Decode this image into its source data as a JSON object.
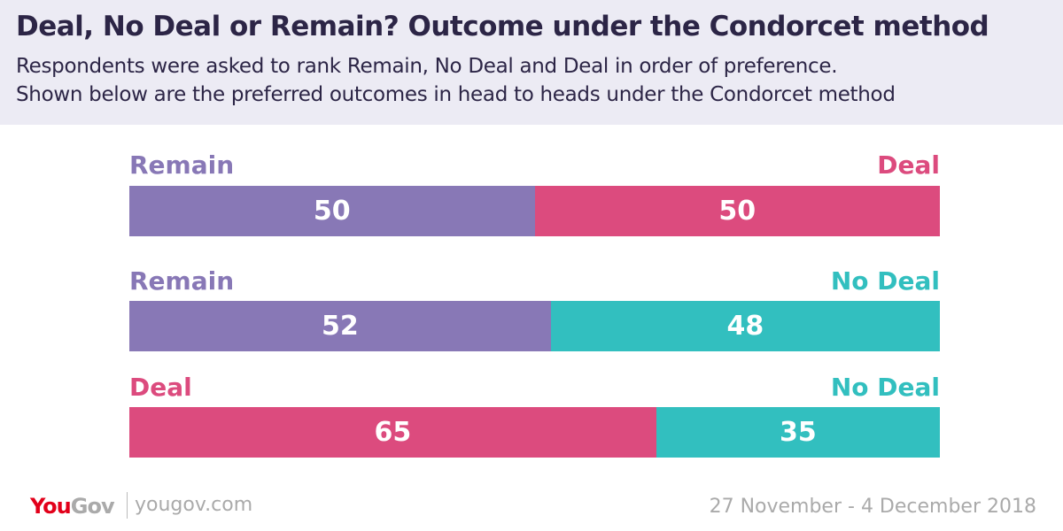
{
  "header": {
    "title": "Deal, No Deal or Remain? Outcome under the Condorcet method",
    "subtitle_line1": "Respondents were asked to rank Remain, No Deal and Deal in order of preference.",
    "subtitle_line2": "Shown below are the preferred outcomes in head to heads under the Condorcet method"
  },
  "colors": {
    "Remain": "#8878b6",
    "Deal": "#dc4b7e",
    "No Deal": "#32bfbf",
    "header_bg": "#ecebf4",
    "title": "#2c2546"
  },
  "chart_data": {
    "type": "bar",
    "orientation": "horizontal-stacked-100",
    "title": "Deal, No Deal or Remain? Outcome under the Condorcet method",
    "matchups": [
      {
        "left": "Remain",
        "right": "Deal",
        "left_value": 50,
        "right_value": 50
      },
      {
        "left": "Remain",
        "right": "No Deal",
        "left_value": 52,
        "right_value": 48
      },
      {
        "left": "Deal",
        "right": "No Deal",
        "left_value": 65,
        "right_value": 35
      }
    ]
  },
  "footer": {
    "logo_you": "You",
    "logo_gov": "Gov",
    "url": "yougov.com",
    "date": "27 November - 4 December 2018"
  }
}
